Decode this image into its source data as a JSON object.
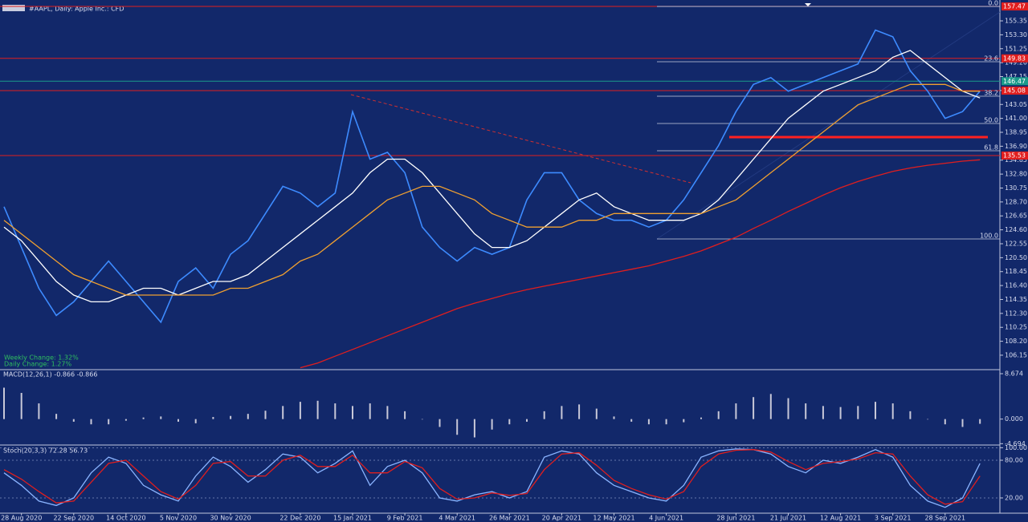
{
  "chart_data": [
    {
      "type": "line",
      "title": "#AAPL, Daily: Apple Inc.: CFD",
      "notes": [
        "Weekly Change: 1.32%",
        "Daily Change: 1.27%"
      ],
      "ylim": [
        104.14,
        158.42
      ],
      "yticks": [
        155.35,
        {
          "value": 153.3,
          "label": "153.30"
        },
        151.25,
        {
          "value": 149.2,
          "label": "149.20"
        },
        147.15,
        145.1,
        143.05,
        {
          "value": 141,
          "label": "141.00"
        },
        138.95,
        {
          "value": 136.9,
          "label": "136.90"
        },
        134.85,
        {
          "value": 132.8,
          "label": "132.80"
        },
        130.75,
        {
          "value": 128.7,
          "label": "128.70"
        },
        126.65,
        {
          "value": 124.6,
          "label": "124.60"
        },
        122.55,
        {
          "value": 120.5,
          "label": "120.50"
        },
        118.45,
        {
          "value": 116.4,
          "label": "116.40"
        },
        114.35,
        {
          "value": 112.3,
          "label": "112.30"
        },
        110.25,
        {
          "value": 108.2,
          "label": "108.20"
        },
        106.15
      ],
      "levels": [
        157.47,
        149.83,
        146.47,
        145.08,
        135.53
      ],
      "level_colors": [
        "#e01e1e",
        "#e01e1e",
        "#1a9a8a",
        "#e01e1e",
        "#e01e1e"
      ],
      "support": 138.24,
      "fib_levels": [
        {
          "value": 157.47,
          "label": "0.0"
        },
        {
          "value": 149.33,
          "label": "23.6"
        },
        {
          "value": 144.26,
          "label": "38.2"
        },
        {
          "value": 140.25,
          "label": "50.0"
        },
        {
          "value": 136.24,
          "label": "61.8"
        },
        {
          "value": 123.26,
          "label": "100.0"
        }
      ],
      "series": [
        {
          "name": "Close",
          "color": "#3d8bff",
          "values": [
            128,
            122,
            116,
            112,
            114,
            117,
            120,
            117,
            114,
            111,
            117,
            119,
            116,
            121,
            123,
            127,
            131,
            130,
            128,
            130,
            142,
            135,
            136,
            133,
            125,
            122,
            120,
            122,
            121,
            122,
            129,
            133,
            133,
            129,
            127,
            126,
            126,
            125,
            126,
            129,
            133,
            137,
            142,
            146,
            147,
            145,
            146,
            147,
            148,
            149,
            154,
            153,
            148,
            145,
            141,
            142,
            145
          ]
        },
        {
          "name": "MA20",
          "color": "#ffffff",
          "values": [
            125,
            123,
            120,
            117,
            115,
            114,
            114,
            115,
            116,
            116,
            115,
            116,
            117,
            117,
            118,
            120,
            122,
            124,
            126,
            128,
            130,
            133,
            135,
            135,
            133,
            130,
            127,
            124,
            122,
            122,
            123,
            125,
            127,
            129,
            130,
            128,
            127,
            126,
            126,
            126,
            127,
            129,
            132,
            135,
            138,
            141,
            143,
            145,
            146,
            147,
            148,
            150,
            151,
            149,
            147,
            145,
            144
          ]
        },
        {
          "name": "MA50",
          "color": "#f0a030",
          "values": [
            126,
            124,
            122,
            120,
            118,
            117,
            116,
            115,
            115,
            115,
            115,
            115,
            115,
            116,
            116,
            117,
            118,
            120,
            121,
            123,
            125,
            127,
            129,
            130,
            131,
            131,
            130,
            129,
            127,
            126,
            125,
            125,
            125,
            126,
            126,
            127,
            127,
            127,
            127,
            127,
            127,
            128,
            129,
            131,
            133,
            135,
            137,
            139,
            141,
            143,
            144,
            145,
            146,
            146,
            146,
            145,
            145
          ]
        },
        {
          "name": "MA200",
          "color": "#e01e1e",
          "values": [
            null,
            null,
            null,
            null,
            null,
            null,
            null,
            null,
            null,
            null,
            null,
            null,
            null,
            null,
            null,
            null,
            null,
            104.3,
            105,
            106,
            107,
            108,
            109,
            110,
            111,
            112,
            113,
            113.8,
            114.5,
            115.2,
            115.8,
            116.3,
            116.8,
            117.3,
            117.8,
            118.3,
            118.8,
            119.3,
            120,
            120.7,
            121.5,
            122.5,
            123.5,
            124.8,
            126,
            127.3,
            128.5,
            129.7,
            130.8,
            131.7,
            132.5,
            133.2,
            133.7,
            134.1,
            134.4,
            134.7,
            134.9
          ]
        }
      ]
    },
    {
      "type": "histogram",
      "title": "MACD(12,26,1) -0.866 -0.866",
      "ylim": [
        -4.8,
        9.29
      ],
      "yticks": [
        8.674,
        {
          "value": 0,
          "label": "0.000"
        },
        -4.694
      ],
      "color": "#c8c8d8",
      "values": [
        6,
        5,
        3,
        1,
        -0.5,
        -1,
        -1,
        -0.3,
        0.3,
        0.5,
        -0.5,
        -0.8,
        0.4,
        0.6,
        1,
        1.6,
        2.5,
        3.3,
        3.5,
        3,
        2.5,
        3,
        2.5,
        1.5,
        0,
        -1.5,
        -3,
        -3.5,
        -2,
        -1,
        -0.5,
        1.5,
        2.5,
        2.8,
        2,
        0.5,
        -0.5,
        -1,
        -1,
        -0.6,
        0.3,
        1.5,
        3,
        4.2,
        4.8,
        4,
        3,
        2.5,
        2.3,
        2.5,
        3.3,
        3,
        1.5,
        0,
        -1,
        -1.5,
        -0.9
      ]
    },
    {
      "type": "line",
      "title": "Stoch(20,3,3) 72.28 56.73",
      "ylim": [
        -4.3,
        103
      ],
      "yticks": [
        {
          "value": 100,
          "label": "100.00"
        },
        {
          "value": 80,
          "label": "80.00"
        },
        {
          "value": 20,
          "label": "20.00"
        }
      ],
      "categories": [
        null,
        "28 Aug 2020",
        null,
        null,
        "22 Sep 2020",
        null,
        null,
        "14 Oct 2020",
        null,
        null,
        "5 Nov 2020",
        null,
        null,
        "30 Nov 2020",
        null,
        null,
        null,
        "22 Dec 2020",
        null,
        null,
        "15 Jan 2021",
        null,
        null,
        "9 Feb 2021",
        null,
        null,
        "4 Mar 2021",
        null,
        null,
        "26 Mar 2021",
        null,
        null,
        "20 Apr 2021",
        null,
        null,
        "12 May 2021",
        null,
        null,
        "4 Jun 2021",
        null,
        null,
        null,
        "28 Jun 2021",
        null,
        null,
        "21 Jul 2021",
        null,
        null,
        "12 Aug 2021",
        null,
        null,
        "3 Sep 2021",
        null,
        null,
        "28 Sep 2021",
        null,
        null
      ],
      "series": [
        {
          "name": "Main",
          "color": "#8ab4ff",
          "values": [
            60,
            40,
            15,
            8,
            20,
            60,
            85,
            75,
            40,
            25,
            15,
            55,
            85,
            70,
            45,
            65,
            90,
            85,
            60,
            75,
            95,
            40,
            70,
            80,
            60,
            20,
            15,
            25,
            30,
            20,
            30,
            85,
            95,
            90,
            60,
            40,
            30,
            20,
            15,
            40,
            85,
            95,
            98,
            97,
            90,
            70,
            60,
            80,
            75,
            85,
            97,
            85,
            40,
            15,
            5,
            20,
            75
          ]
        },
        {
          "name": "Signal",
          "color": "#e01e1e",
          "values": [
            65,
            50,
            30,
            12,
            15,
            45,
            75,
            80,
            55,
            30,
            18,
            40,
            75,
            78,
            55,
            55,
            80,
            88,
            70,
            70,
            88,
            60,
            60,
            78,
            68,
            35,
            18,
            20,
            28,
            24,
            27,
            65,
            90,
            92,
            72,
            48,
            35,
            25,
            18,
            30,
            70,
            90,
            96,
            97,
            93,
            78,
            65,
            75,
            78,
            82,
            92,
            90,
            55,
            25,
            10,
            14,
            55
          ]
        }
      ]
    }
  ]
}
